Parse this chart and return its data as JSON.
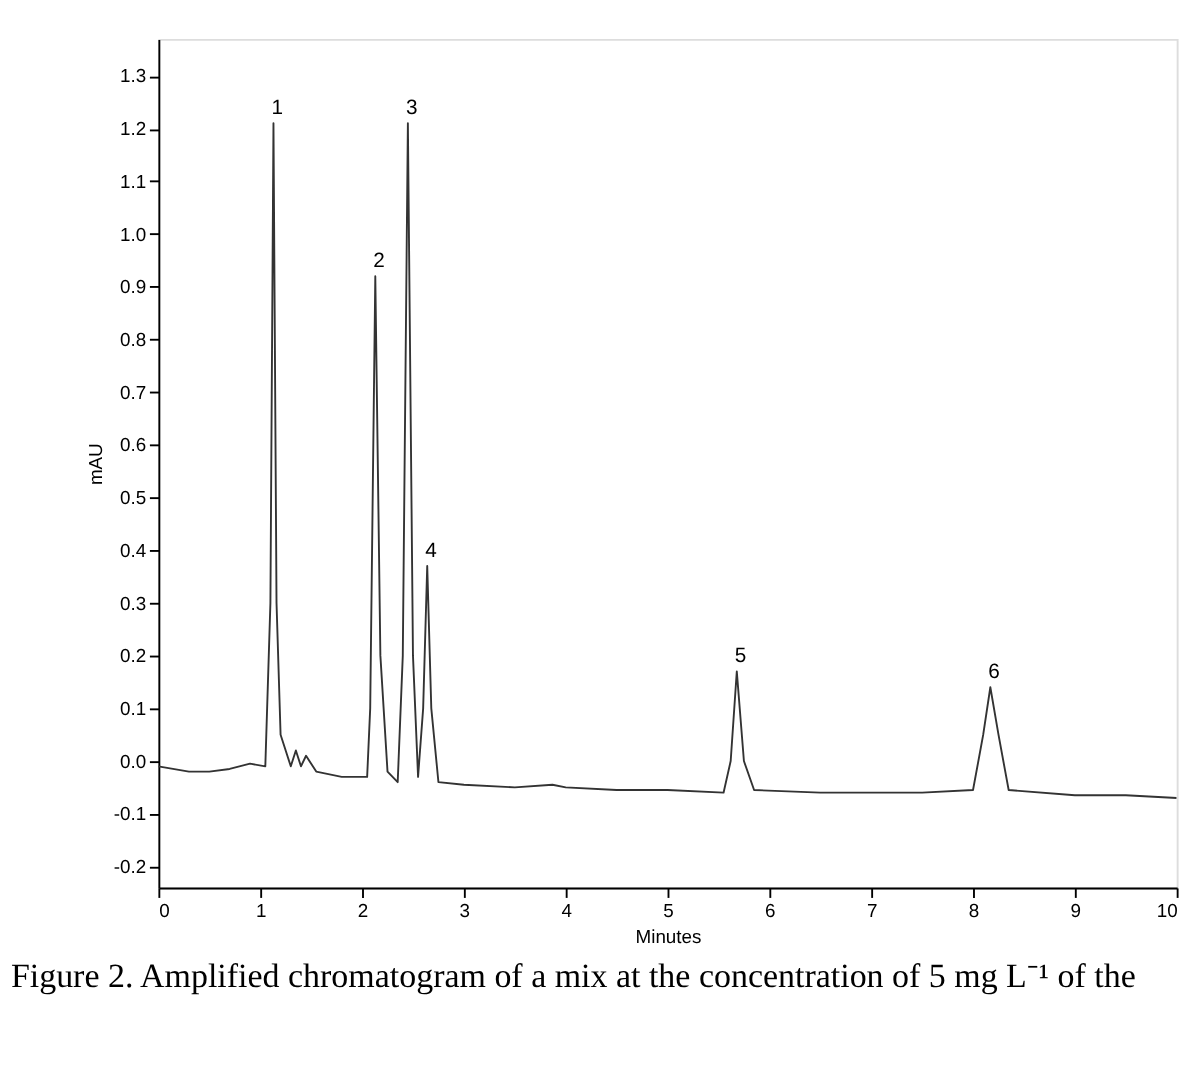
{
  "chart_data": {
    "type": "line",
    "xlabel": "Minutes",
    "ylabel": "mAU",
    "x": [
      0,
      0.3,
      0.5,
      0.7,
      0.9,
      1.05,
      1.1,
      1.13,
      1.16,
      1.2,
      1.3,
      1.35,
      1.4,
      1.45,
      1.55,
      1.8,
      2.05,
      2.08,
      2.13,
      2.18,
      2.25,
      2.35,
      2.4,
      2.45,
      2.5,
      2.55,
      2.6,
      2.64,
      2.68,
      2.75,
      3,
      3.5,
      3.87,
      4,
      4.5,
      5,
      5.55,
      5.62,
      5.68,
      5.75,
      5.85,
      6.5,
      7,
      7.5,
      8.0,
      8.1,
      8.17,
      8.25,
      8.35,
      9,
      9.5,
      10
    ],
    "series": [
      {
        "color": "#333333",
        "values": [
          -0.01,
          -0.02,
          -0.02,
          -0.015,
          -0.005,
          -0.01,
          0.3,
          1.21,
          0.3,
          0.05,
          -0.01,
          0.02,
          -0.01,
          0.01,
          -0.02,
          -0.03,
          -0.03,
          0.1,
          0.92,
          0.2,
          -0.02,
          -0.04,
          0.2,
          1.21,
          0.2,
          -0.03,
          0.1,
          0.37,
          0.1,
          -0.04,
          -0.045,
          -0.05,
          -0.045,
          -0.05,
          -0.055,
          -0.055,
          -0.06,
          0.0,
          0.17,
          0.0,
          -0.055,
          -0.06,
          -0.06,
          -0.06,
          -0.055,
          0.05,
          0.14,
          0.05,
          -0.055,
          -0.065,
          -0.065,
          -0.07
        ]
      }
    ],
    "xlim": [
      0,
      10
    ],
    "xticks": [
      0,
      1,
      2,
      3,
      4,
      5,
      6,
      7,
      8,
      9,
      10
    ],
    "ylim": [
      -0.24,
      1.37
    ],
    "yticks": [
      -0.2,
      -0.1,
      {
        "value": 0,
        "label": "0.0"
      },
      0.1,
      0.2,
      0.3,
      0.4,
      0.5,
      0.6,
      0.7,
      0.8,
      0.9,
      {
        "value": 1,
        "label": "1.0"
      },
      1.1,
      1.2,
      1.3
    ],
    "grid": false,
    "marker": "none",
    "line_style": "solid",
    "annotations": [
      {
        "text": "1",
        "x": 1.13,
        "y": 1.21
      },
      {
        "text": "2",
        "x": 2.13,
        "y": 0.92
      },
      {
        "text": "3",
        "x": 2.45,
        "y": 1.21
      },
      {
        "text": "4",
        "x": 2.64,
        "y": 0.37
      },
      {
        "text": "5",
        "x": 5.68,
        "y": 0.17
      },
      {
        "text": "6",
        "x": 8.17,
        "y": 0.14
      },
      "Figure 2. Amplified chromatogram of a mix at the concentration of 5 mg L⁻¹ of the"
    ]
  }
}
